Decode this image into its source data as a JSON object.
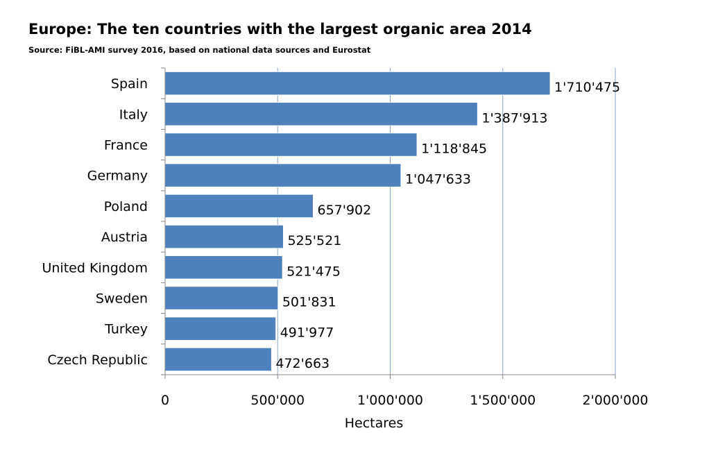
{
  "chart_data": {
    "type": "bar",
    "orientation": "horizontal",
    "title": "Europe: The ten countries with the largest organic area 2014",
    "subtitle": "Source: FiBL-AMI survey 2016, based on national data sources and Eurostat",
    "xlabel": "Hectares",
    "ylabel": "",
    "xlim": [
      0,
      2000000
    ],
    "x_ticks": [
      0,
      500000,
      1000000,
      1500000,
      2000000
    ],
    "x_tick_labels": [
      "0",
      "500'000",
      "1'000'000",
      "1'500'000",
      "2'000'000"
    ],
    "categories": [
      "Spain",
      "Italy",
      "France",
      "Germany",
      "Poland",
      "Austria",
      "United Kingdom",
      "Sweden",
      "Turkey",
      "Czech Republic"
    ],
    "values": [
      1710475,
      1387913,
      1118845,
      1047633,
      657902,
      525521,
      521475,
      501831,
      491977,
      472663
    ],
    "value_labels": [
      "1'710'475",
      "1'387'913",
      "1'118'845",
      "1'047'633",
      "657'902",
      "525'521",
      "521'475",
      "501'831",
      "491'977",
      "472'663"
    ],
    "grid": "vertical",
    "legend": "none",
    "bar_color": "#4f81bd",
    "bar_border_color": "#ffffff",
    "grid_color": "#86a3c9",
    "axis_color": "#868686"
  }
}
